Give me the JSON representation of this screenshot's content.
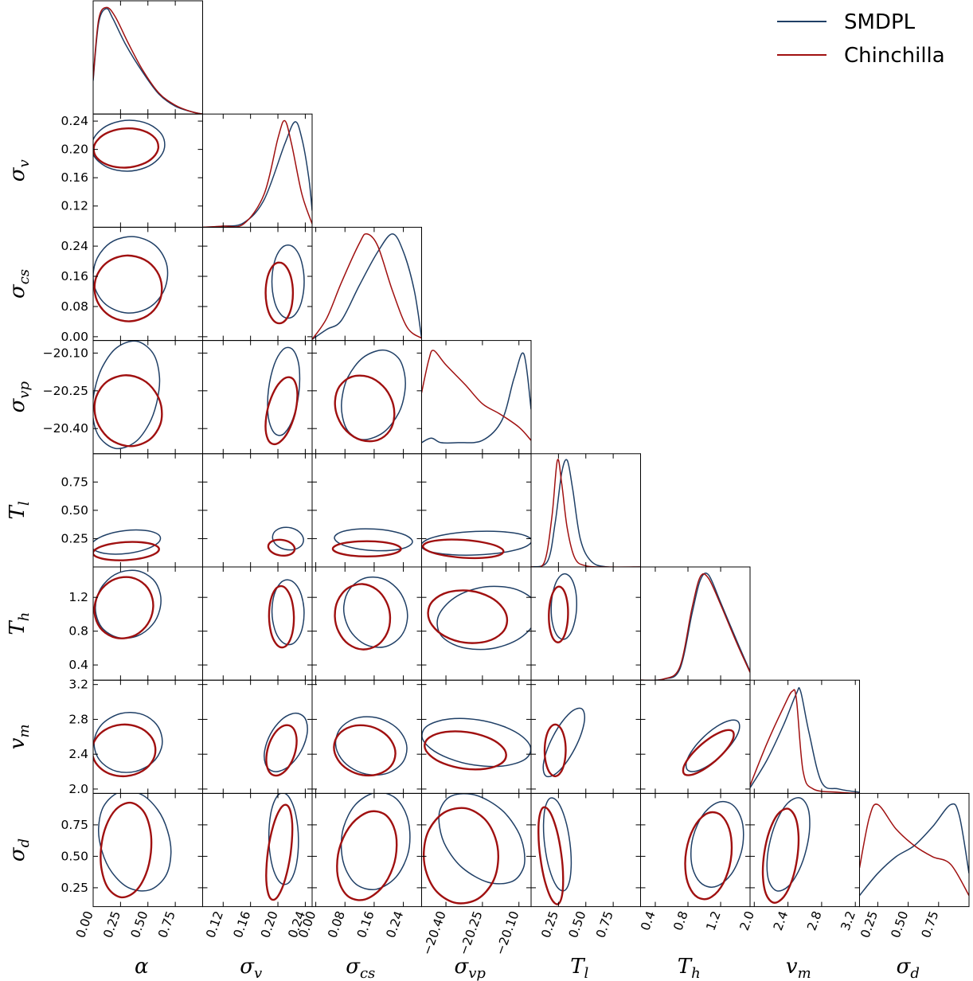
{
  "chart_data": {
    "type": "corner",
    "title": "",
    "parameters": [
      {
        "key": "alpha",
        "symbol": "α",
        "sub": "",
        "range": [
          0.0,
          1.0
        ],
        "ticks": [
          "0.00",
          "0.25",
          "0.50",
          "0.75"
        ],
        "tick_values": [
          0.0,
          0.25,
          0.5,
          0.75
        ]
      },
      {
        "key": "sigma_v",
        "symbol": "σ",
        "sub": "v",
        "range": [
          0.09,
          0.25
        ],
        "ticks": [
          "0.12",
          "0.16",
          "0.20",
          "0.24"
        ],
        "tick_values": [
          0.12,
          0.16,
          0.2,
          0.24
        ]
      },
      {
        "key": "sigma_cs",
        "symbol": "σ",
        "sub": "cs",
        "range": [
          -0.01,
          0.29
        ],
        "ticks": [
          "0.00",
          "0.08",
          "0.16",
          "0.24"
        ],
        "tick_values": [
          0.0,
          0.08,
          0.16,
          0.24
        ]
      },
      {
        "key": "sigma_vp",
        "symbol": "σ",
        "sub": "vp",
        "range": [
          -20.5,
          -20.05
        ],
        "ticks": [
          "−20.40",
          "−20.25",
          "−20.10"
        ],
        "tick_values": [
          -20.4,
          -20.25,
          -20.1
        ]
      },
      {
        "key": "T_l",
        "symbol": "T",
        "sub": "l",
        "range": [
          0.0,
          1.0
        ],
        "ticks": [
          "0.25",
          "0.50",
          "0.75"
        ],
        "tick_values": [
          0.25,
          0.5,
          0.75
        ]
      },
      {
        "key": "T_h",
        "symbol": "T",
        "sub": "h",
        "range": [
          0.22,
          1.56
        ],
        "ticks": [
          "0.4",
          "0.8",
          "1.2"
        ],
        "tick_values": [
          0.4,
          0.8,
          1.2
        ]
      },
      {
        "key": "v_m",
        "symbol": "v",
        "sub": "m",
        "range": [
          1.95,
          3.25
        ],
        "ticks": [
          "2.0",
          "2.4",
          "2.8",
          "3.2"
        ],
        "tick_values": [
          2.0,
          2.4,
          2.8,
          3.2
        ]
      },
      {
        "key": "sigma_d",
        "symbol": "σ",
        "sub": "d",
        "range": [
          0.1,
          1.0
        ],
        "ticks": [
          "0.25",
          "0.50",
          "0.75"
        ],
        "tick_values": [
          0.25,
          0.5,
          0.75
        ]
      }
    ],
    "series": [
      {
        "name": "SMDPL",
        "color": "#1f3f66"
      },
      {
        "name": "Chinchilla",
        "color": "#a01010"
      }
    ],
    "legend_position": "top-right",
    "marginals": [
      {
        "param": 0,
        "SMDPL": [
          [
            0.0,
            0.3
          ],
          [
            0.05,
            0.82
          ],
          [
            0.12,
            0.95
          ],
          [
            0.18,
            0.86
          ],
          [
            0.3,
            0.62
          ],
          [
            0.45,
            0.38
          ],
          [
            0.6,
            0.18
          ],
          [
            0.75,
            0.07
          ],
          [
            0.9,
            0.02
          ],
          [
            1.0,
            0.0
          ]
        ],
        "Chinchilla": [
          [
            0.0,
            0.32
          ],
          [
            0.05,
            0.85
          ],
          [
            0.12,
            0.96
          ],
          [
            0.2,
            0.88
          ],
          [
            0.32,
            0.64
          ],
          [
            0.45,
            0.4
          ],
          [
            0.6,
            0.19
          ],
          [
            0.75,
            0.08
          ],
          [
            0.9,
            0.02
          ],
          [
            1.0,
            0.0
          ]
        ]
      },
      {
        "param": 1,
        "SMDPL": [
          [
            0.09,
            0.0
          ],
          [
            0.12,
            0.01
          ],
          [
            0.15,
            0.04
          ],
          [
            0.18,
            0.25
          ],
          [
            0.21,
            0.75
          ],
          [
            0.225,
            0.95
          ],
          [
            0.235,
            0.8
          ],
          [
            0.245,
            0.45
          ],
          [
            0.25,
            0.15
          ]
        ],
        "Chinchilla": [
          [
            0.09,
            0.0
          ],
          [
            0.12,
            0.01
          ],
          [
            0.15,
            0.03
          ],
          [
            0.18,
            0.3
          ],
          [
            0.2,
            0.8
          ],
          [
            0.21,
            0.96
          ],
          [
            0.22,
            0.75
          ],
          [
            0.235,
            0.3
          ],
          [
            0.25,
            0.03
          ]
        ]
      },
      {
        "param": 2,
        "SMDPL": [
          [
            -0.01,
            0.01
          ],
          [
            0.03,
            0.1
          ],
          [
            0.07,
            0.18
          ],
          [
            0.12,
            0.5
          ],
          [
            0.17,
            0.8
          ],
          [
            0.21,
            0.96
          ],
          [
            0.24,
            0.8
          ],
          [
            0.27,
            0.45
          ],
          [
            0.29,
            0.02
          ]
        ],
        "Chinchilla": [
          [
            -0.01,
            0.01
          ],
          [
            0.03,
            0.2
          ],
          [
            0.07,
            0.52
          ],
          [
            0.12,
            0.88
          ],
          [
            0.14,
            0.96
          ],
          [
            0.17,
            0.85
          ],
          [
            0.21,
            0.45
          ],
          [
            0.25,
            0.12
          ],
          [
            0.29,
            0.02
          ]
        ]
      },
      {
        "param": 3,
        "SMDPL": [
          [
            -20.5,
            0.1
          ],
          [
            -20.46,
            0.14
          ],
          [
            -20.42,
            0.1
          ],
          [
            -20.35,
            0.1
          ],
          [
            -20.25,
            0.12
          ],
          [
            -20.17,
            0.3
          ],
          [
            -20.12,
            0.68
          ],
          [
            -20.08,
            0.9
          ],
          [
            -20.05,
            0.4
          ]
        ],
        "Chinchilla": [
          [
            -20.5,
            0.55
          ],
          [
            -20.47,
            0.85
          ],
          [
            -20.45,
            0.93
          ],
          [
            -20.4,
            0.8
          ],
          [
            -20.32,
            0.62
          ],
          [
            -20.25,
            0.45
          ],
          [
            -20.18,
            0.36
          ],
          [
            -20.1,
            0.24
          ],
          [
            -20.05,
            0.12
          ]
        ]
      },
      {
        "param": 4,
        "SMDPL": [
          [
            0.0,
            0.0
          ],
          [
            0.15,
            0.05
          ],
          [
            0.22,
            0.4
          ],
          [
            0.28,
            0.85
          ],
          [
            0.33,
            0.96
          ],
          [
            0.38,
            0.7
          ],
          [
            0.45,
            0.25
          ],
          [
            0.55,
            0.05
          ],
          [
            0.7,
            0.0
          ],
          [
            1.0,
            0.0
          ]
        ],
        "Chinchilla": [
          [
            0.0,
            0.0
          ],
          [
            0.12,
            0.04
          ],
          [
            0.19,
            0.45
          ],
          [
            0.24,
            0.96
          ],
          [
            0.28,
            0.75
          ],
          [
            0.33,
            0.35
          ],
          [
            0.4,
            0.08
          ],
          [
            0.5,
            0.01
          ],
          [
            0.7,
            0.0
          ],
          [
            1.0,
            0.0
          ]
        ]
      },
      {
        "param": 5,
        "SMDPL": [
          [
            0.22,
            0.0
          ],
          [
            0.5,
            0.01
          ],
          [
            0.7,
            0.1
          ],
          [
            0.85,
            0.6
          ],
          [
            0.95,
            0.9
          ],
          [
            1.05,
            0.95
          ],
          [
            1.2,
            0.7
          ],
          [
            1.4,
            0.35
          ],
          [
            1.56,
            0.08
          ]
        ],
        "Chinchilla": [
          [
            0.22,
            0.0
          ],
          [
            0.5,
            0.01
          ],
          [
            0.7,
            0.12
          ],
          [
            0.85,
            0.65
          ],
          [
            0.95,
            0.93
          ],
          [
            1.05,
            0.92
          ],
          [
            1.2,
            0.68
          ],
          [
            1.4,
            0.33
          ],
          [
            1.56,
            0.07
          ]
        ]
      },
      {
        "param": 6,
        "SMDPL": [
          [
            1.95,
            0.05
          ],
          [
            2.15,
            0.3
          ],
          [
            2.35,
            0.62
          ],
          [
            2.5,
            0.9
          ],
          [
            2.55,
            0.92
          ],
          [
            2.65,
            0.55
          ],
          [
            2.8,
            0.1
          ],
          [
            3.0,
            0.04
          ],
          [
            3.25,
            0.01
          ]
        ],
        "Chinchilla": [
          [
            1.95,
            0.07
          ],
          [
            2.15,
            0.45
          ],
          [
            2.35,
            0.78
          ],
          [
            2.45,
            0.92
          ],
          [
            2.5,
            0.85
          ],
          [
            2.58,
            0.2
          ],
          [
            2.7,
            0.04
          ],
          [
            3.0,
            0.01
          ],
          [
            3.25,
            0.0
          ]
        ]
      },
      {
        "param": 7,
        "SMDPL": [
          [
            0.1,
            0.1
          ],
          [
            0.25,
            0.3
          ],
          [
            0.4,
            0.45
          ],
          [
            0.55,
            0.55
          ],
          [
            0.7,
            0.72
          ],
          [
            0.85,
            0.92
          ],
          [
            0.92,
            0.82
          ],
          [
            1.0,
            0.3
          ]
        ],
        "Chinchilla": [
          [
            0.1,
            0.35
          ],
          [
            0.18,
            0.8
          ],
          [
            0.25,
            0.92
          ],
          [
            0.4,
            0.7
          ],
          [
            0.55,
            0.55
          ],
          [
            0.7,
            0.45
          ],
          [
            0.85,
            0.38
          ],
          [
            1.0,
            0.1
          ]
        ]
      }
    ]
  }
}
